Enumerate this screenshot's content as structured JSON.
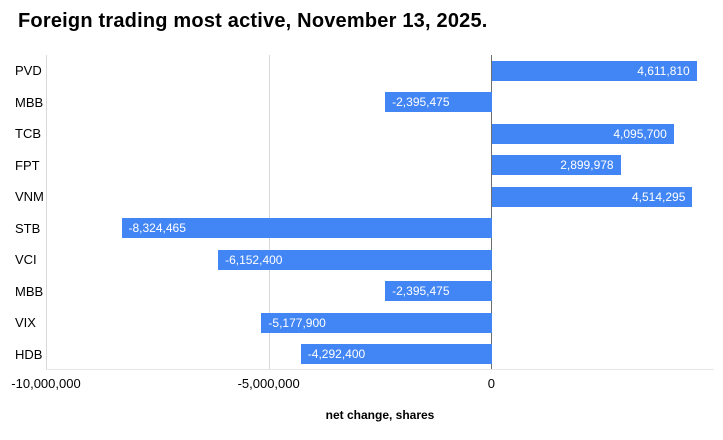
{
  "title": "Foreign trading most active, November 13, 2025.",
  "chart_data": {
    "type": "bar",
    "orientation": "horizontal",
    "title": "Foreign trading most active, November 13, 2025.",
    "categories": [
      "PVD",
      "MBB",
      "TCB",
      "FPT",
      "VNM",
      "STB",
      "VCI",
      "MBB",
      "VIX",
      "HDB"
    ],
    "values": [
      4611810,
      -2395475,
      4095700,
      2899978,
      4514295,
      -8324465,
      -6152400,
      -2395475,
      -5177900,
      -4292400
    ],
    "value_labels": [
      "4,611,810",
      "-2,395,475",
      "4,095,700",
      "2,899,978",
      "4,514,295",
      "-8,324,465",
      "-6,152,400",
      "-2,395,475",
      "-5,177,900",
      "-4,292,400"
    ],
    "xlabel": "net change, shares",
    "ylabel": "",
    "xlim": [
      -10000000,
      5000000
    ],
    "xticks": [
      {
        "value": -10000000,
        "label": "-10,000,000"
      },
      {
        "value": -5000000,
        "label": "-5,000,000"
      },
      {
        "value": 0,
        "label": "0"
      }
    ],
    "bar_color": "#4285f4",
    "value_label_color": "#ffffff",
    "grid": true,
    "legend": "none"
  }
}
